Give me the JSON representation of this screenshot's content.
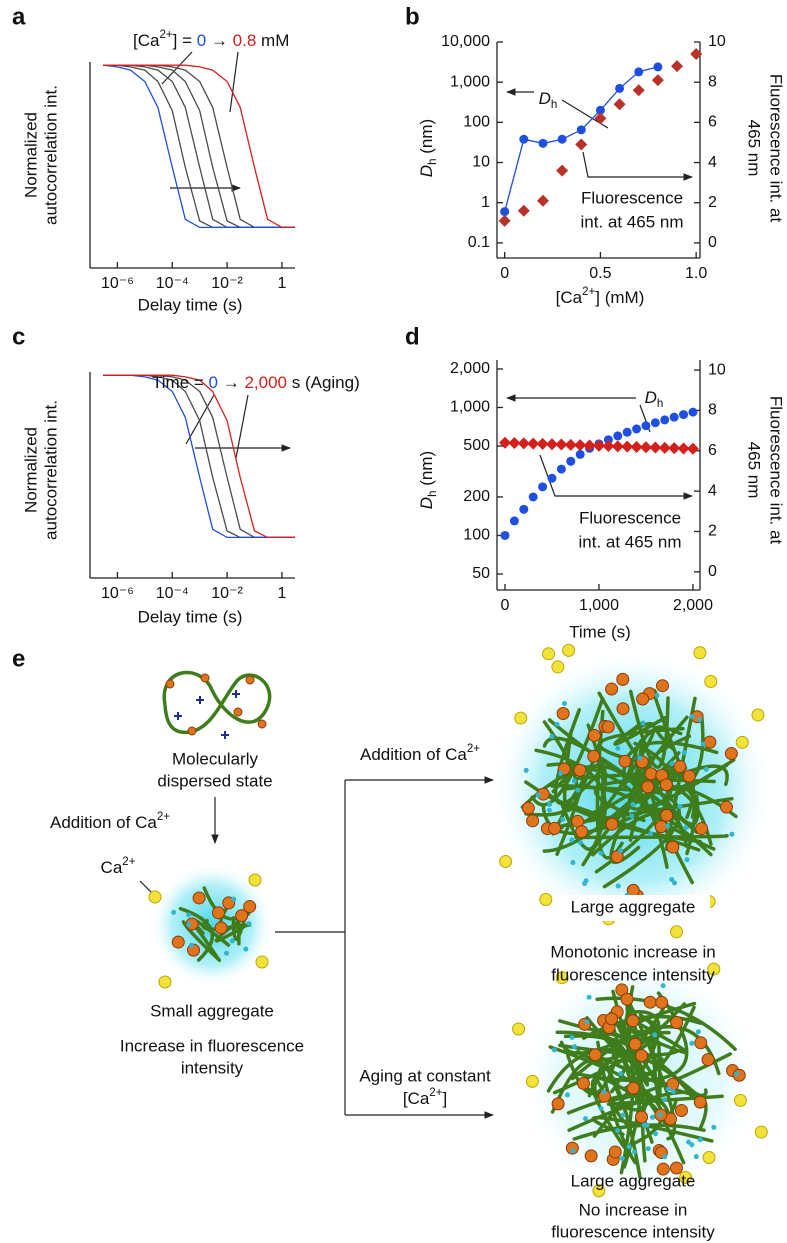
{
  "chart_data": [
    {
      "panel": "a",
      "type": "line",
      "xlabel": "Delay time (s)",
      "ylabel": [
        "Normalized",
        "autocorrelation int."
      ],
      "annotations": [
        [
          {
            "text": "[Ca"
          },
          {
            "text": "2+",
            "sup": true
          },
          {
            "text": "] = "
          },
          {
            "text": "0",
            "color": "#1f4fe0"
          },
          {
            "text": " → "
          },
          {
            "text": "0.8",
            "color": "#d4201c"
          },
          {
            "text": " mM"
          }
        ]
      ],
      "xlog": true,
      "xlim": [
        1e-07,
        3
      ],
      "xticks": [
        {
          "value": 1e-06,
          "label": "10⁻⁶"
        },
        {
          "value": 0.0001,
          "label": "10⁻⁴"
        },
        {
          "value": 0.01,
          "label": "10⁻²"
        },
        1
      ],
      "ylim": [
        -0.25,
        1.02
      ],
      "x": [
        3e-07,
        1e-06,
        3e-06,
        1e-05,
        3e-05,
        0.0001,
        0.0003,
        0.001,
        0.003,
        0.01,
        0.03,
        0.1,
        0.3,
        1,
        3
      ],
      "series": [
        {
          "color": "#4a4a4a",
          "values": [
            1,
            1,
            0.99,
            0.97,
            0.9,
            0.72,
            0.37,
            0.04,
            0,
            0,
            0,
            0,
            0,
            0,
            0
          ]
        },
        {
          "color": "#4a4a4a",
          "values": [
            1,
            1,
            1,
            0.99,
            0.97,
            0.9,
            0.74,
            0.37,
            0.05,
            0,
            0,
            0,
            0,
            0,
            0
          ]
        },
        {
          "color": "#4a4a4a",
          "values": [
            1,
            1,
            1,
            1,
            0.99,
            0.97,
            0.9,
            0.72,
            0.37,
            0.04,
            0,
            0,
            0,
            0,
            0
          ]
        },
        {
          "color": "#4a4a4a",
          "values": [
            1,
            1,
            1,
            1,
            1,
            0.99,
            0.97,
            0.9,
            0.74,
            0.37,
            0.05,
            0,
            0,
            0,
            0
          ]
        },
        {
          "color": "#1f4fe0",
          "values": [
            1,
            0.99,
            0.97,
            0.9,
            0.74,
            0.37,
            0.05,
            0,
            0,
            0,
            0,
            0,
            0,
            0,
            0
          ]
        },
        {
          "color": "#d4201c",
          "values": [
            1,
            1,
            1,
            1,
            1,
            1,
            1,
            0.99,
            0.97,
            0.9,
            0.74,
            0.37,
            0.05,
            0,
            0
          ]
        }
      ]
    },
    {
      "panel": "b",
      "type": "line",
      "xlabel": [
        {
          "text": "[Ca"
        },
        {
          "text": "2+",
          "sup": true
        },
        {
          "text": "] (mM)"
        }
      ],
      "ylabel": [
        {
          "text": "D",
          "italic": true
        },
        {
          "text": "h",
          "sub": true
        },
        {
          "text": " (nm)"
        }
      ],
      "y2label": [
        "Fluorescence int. at",
        "465 nm"
      ],
      "annotations": [
        [
          {
            "text": "D",
            "italic": true
          },
          {
            "text": "h",
            "sub": true
          }
        ],
        [
          "Fluorescence",
          "int. at 465 nm"
        ]
      ],
      "xlim": [
        -0.04,
        1.02
      ],
      "xticks": [
        0,
        0.5,
        {
          "value": 1,
          "label": "1.0"
        }
      ],
      "ylog": true,
      "ylim": [
        0.042,
        10000
      ],
      "yticks": [
        0.1,
        1,
        10,
        100,
        {
          "value": 1000,
          "label": "1,000"
        },
        {
          "value": 10000,
          "label": "10,000"
        }
      ],
      "y2lim": [
        -0.75,
        10
      ],
      "y2ticks": [
        0,
        2,
        4,
        6,
        8,
        10
      ],
      "series": [
        {
          "color": "#1f4fe0",
          "marker": "circle",
          "line": true,
          "x": [
            0,
            0.1,
            0.2,
            0.3,
            0.4,
            0.5,
            0.6,
            0.7,
            0.8
          ],
          "values": [
            0.6,
            38,
            30,
            38,
            65,
            200,
            700,
            1800,
            2400
          ]
        },
        {
          "color": "#b8322a",
          "marker": "diamond",
          "line": false,
          "axis": "y2",
          "x": [
            0,
            0.1,
            0.2,
            0.3,
            0.4,
            0.5,
            0.6,
            0.7,
            0.8,
            0.9,
            1
          ],
          "values": [
            1.1,
            1.6,
            2.1,
            3.6,
            4.9,
            6.2,
            6.9,
            7.6,
            8.1,
            8.8,
            9.4
          ]
        }
      ]
    },
    {
      "panel": "c",
      "type": "line",
      "xlabel": "Delay time (s)",
      "ylabel": [
        "Normalized",
        "autocorrelation int."
      ],
      "annotations": [
        [
          {
            "text": "Time = "
          },
          {
            "text": "0",
            "color": "#1f4fe0"
          },
          {
            "text": " → "
          },
          {
            "text": "2,000",
            "color": "#d4201c"
          },
          {
            "text": " s (Aging)"
          }
        ]
      ],
      "xlog": true,
      "xlim": [
        1e-07,
        3
      ],
      "xticks": [
        {
          "value": 1e-06,
          "label": "10⁻⁶"
        },
        {
          "value": 0.0001,
          "label": "10⁻⁴"
        },
        {
          "value": 0.01,
          "label": "10⁻²"
        },
        1
      ],
      "ylim": [
        -0.25,
        1.02
      ],
      "x": [
        3e-07,
        1e-06,
        3e-06,
        1e-05,
        3e-05,
        0.0001,
        0.0003,
        0.001,
        0.003,
        0.01,
        0.03,
        0.1,
        0.3,
        1,
        3
      ],
      "series": [
        {
          "color": "#4a4a4a",
          "values": [
            1,
            1,
            1,
            1,
            0.99,
            0.97,
            0.9,
            0.72,
            0.37,
            0.04,
            0,
            0,
            0,
            0,
            0
          ]
        },
        {
          "color": "#4a4a4a",
          "values": [
            1,
            1,
            1,
            1,
            1,
            0.99,
            0.97,
            0.9,
            0.74,
            0.37,
            0.05,
            0,
            0,
            0,
            0
          ]
        },
        {
          "color": "#1f4fe0",
          "values": [
            1,
            1,
            1,
            0.99,
            0.97,
            0.9,
            0.74,
            0.37,
            0.05,
            0,
            0,
            0,
            0,
            0,
            0
          ]
        },
        {
          "color": "#d4201c",
          "values": [
            1,
            1,
            1,
            1,
            1,
            1,
            0.99,
            0.97,
            0.9,
            0.72,
            0.37,
            0.04,
            0,
            0,
            0
          ]
        }
      ]
    },
    {
      "panel": "d",
      "type": "scatter",
      "xlabel": "Time (s)",
      "ylabel": [
        {
          "text": "D",
          "italic": true
        },
        {
          "text": "h",
          "sub": true
        },
        {
          "text": " (nm)"
        }
      ],
      "y2label": [
        "Fluorescence int. at",
        "465 nm"
      ],
      "annotations": [
        [
          {
            "text": "D",
            "italic": true
          },
          {
            "text": "h",
            "sub": true
          }
        ],
        [
          "Fluorescence",
          "int. at 465 nm"
        ]
      ],
      "xlim": [
        -85,
        2075
      ],
      "xticks": [
        0,
        {
          "value": 1000,
          "label": "1,000"
        },
        {
          "value": 2000,
          "label": "2,000"
        }
      ],
      "ylog": true,
      "ylim": [
        37.5,
        2350
      ],
      "yticks": [
        50,
        100,
        200,
        500,
        {
          "value": 1000,
          "label": "1,000"
        },
        {
          "value": 2000,
          "label": "2,000"
        }
      ],
      "y2lim": [
        -0.9,
        10.5
      ],
      "y2ticks": [
        0,
        2,
        4,
        6,
        8,
        10
      ],
      "x": [
        0,
        100,
        200,
        300,
        400,
        500,
        600,
        700,
        800,
        900,
        1000,
        1100,
        1200,
        1300,
        1400,
        1500,
        1600,
        1700,
        1800,
        1900,
        2000
      ],
      "series": [
        {
          "color": "#1f4fe0",
          "marker": "circle",
          "line": false,
          "values": [
            100,
            130,
            160,
            200,
            240,
            280,
            330,
            380,
            430,
            480,
            520,
            560,
            600,
            640,
            680,
            720,
            760,
            800,
            840,
            880,
            920
          ]
        },
        {
          "color": "#d4201c",
          "marker": "diamond",
          "line": false,
          "axis": "y2",
          "values": [
            6.4,
            6.385,
            6.37,
            6.355,
            6.34,
            6.325,
            6.31,
            6.295,
            6.28,
            6.265,
            6.25,
            6.235,
            6.22,
            6.205,
            6.19,
            6.175,
            6.16,
            6.145,
            6.13,
            6.115,
            6.1
          ]
        }
      ]
    }
  ],
  "diagram": {
    "panel": "e",
    "dispersed": [
      "Molecularly",
      "dispersed state"
    ],
    "addition_left": [
      {
        "text": "Addition of Ca"
      },
      {
        "text": "2+",
        "sup": true
      }
    ],
    "ion_label": [
      {
        "text": "Ca"
      },
      {
        "text": "2+",
        "sup": true
      }
    ],
    "small": "Small aggregate",
    "small_note": [
      "Increase in fluorescence",
      "intensity"
    ],
    "addition_top": [
      {
        "text": "Addition of Ca"
      },
      {
        "text": "2+",
        "sup": true
      }
    ],
    "large_top": "Large aggregate",
    "large_top_note": [
      "Monotonic increase in",
      "fluorescence intensity"
    ],
    "aging": [
      "Aging at constant",
      [
        {
          "text": "[Ca"
        },
        {
          "text": "2+",
          "sup": true
        },
        {
          "text": "]"
        }
      ]
    ],
    "large_bottom": "Large aggregate",
    "large_bottom_note": [
      "No increase in",
      "fluorescence intensity"
    ]
  }
}
